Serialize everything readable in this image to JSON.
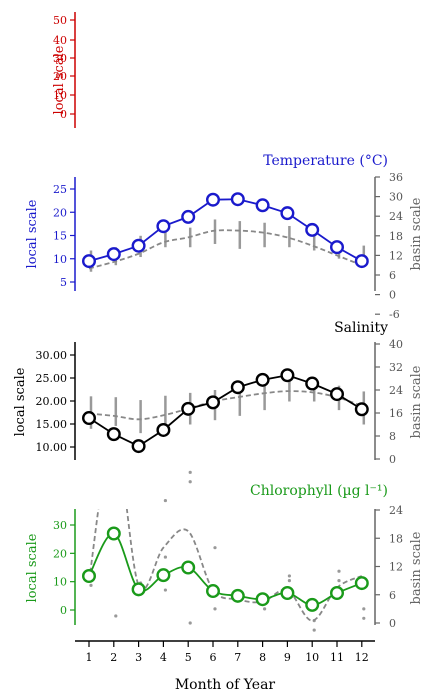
{
  "chart_data": {
    "type": "line",
    "x_label": "Month of Year",
    "x_ticks": [
      1,
      2,
      3,
      4,
      5,
      6,
      7,
      8,
      9,
      10,
      11,
      12
    ],
    "panels": [
      {
        "id": "top",
        "title": "",
        "color": "#cc0000",
        "left_label": "local scale",
        "left_ticks": [
          "50",
          "40",
          "30",
          "20",
          "10",
          "0"
        ],
        "left_ylim": [
          -5,
          55
        ],
        "right_label": "",
        "right_ticks": [],
        "series": []
      },
      {
        "id": "temperature",
        "title": "Temperature (°C)",
        "color": "#1a1acc",
        "left_label": "local scale",
        "left_ticks": [
          "25",
          "20",
          "15",
          "10",
          "5"
        ],
        "left_ylim": [
          3,
          27
        ],
        "right_label": "basin scale",
        "right_ticks": [
          "36",
          "30",
          "24",
          "18",
          "12",
          "6",
          "0",
          "-6"
        ],
        "right_ylim": [
          -6,
          36
        ],
        "local_mean": [
          9.5,
          11.0,
          12.8,
          17.0,
          19.0,
          22.7,
          22.8,
          21.5,
          19.8,
          16.2,
          12.5,
          9.5
        ],
        "basin_mean": [
          8.0,
          10.0,
          12.5,
          16.0,
          17.5,
          19.5,
          19.6,
          19.0,
          17.5,
          15.0,
          12.0,
          9.0
        ],
        "basin_range": [
          [
            7.0,
            13.5
          ],
          [
            9.0,
            14.5
          ],
          [
            11.5,
            18.0
          ],
          [
            14.5,
            20.5
          ],
          [
            14.5,
            20.5
          ],
          [
            15.5,
            23.0
          ],
          [
            14.0,
            22.5
          ],
          [
            14.5,
            22.0
          ],
          [
            14.5,
            21.0
          ],
          [
            13.5,
            18.5
          ],
          [
            11.0,
            15.5
          ],
          [
            8.5,
            15.0
          ]
        ]
      },
      {
        "id": "salinity",
        "title": "Salinity",
        "color": "#000000",
        "left_label": "local scale",
        "left_ticks": [
          "30.00",
          "25.00",
          "20.00",
          "15.00",
          "10.00"
        ],
        "left_ylim": [
          7,
          32
        ],
        "right_label": "basin scale",
        "right_ticks": [
          "40",
          "32",
          "24",
          "16",
          "8",
          "0"
        ],
        "right_ylim": [
          0,
          40
        ],
        "local_mean": [
          16.3,
          12.8,
          10.2,
          13.7,
          18.3,
          19.7,
          23.0,
          24.6,
          25.6,
          23.8,
          21.5,
          18.2
        ],
        "basin_mean": [
          15.8,
          15.0,
          13.8,
          15.2,
          17.5,
          20.0,
          21.5,
          22.8,
          23.6,
          23.2,
          21.5,
          18.5
        ],
        "basin_range": [
          [
            10.5,
            21.8
          ],
          [
            11.5,
            21.5
          ],
          [
            9.0,
            20.5
          ],
          [
            9.0,
            22.0
          ],
          [
            12.0,
            23.0
          ],
          [
            13.5,
            24.0
          ],
          [
            15.0,
            26.0
          ],
          [
            17.0,
            27.0
          ],
          [
            20.0,
            28.5
          ],
          [
            20.0,
            28.0
          ],
          [
            17.0,
            25.5
          ],
          [
            12.0,
            23.5
          ]
        ]
      },
      {
        "id": "chlorophyll",
        "title": "Chlorophyll (µg l⁻¹)",
        "color": "#1a9a1a",
        "left_label": "local scale",
        "left_ticks": [
          "30",
          "20",
          "10",
          "0"
        ],
        "left_ylim": [
          -5,
          36
        ],
        "right_label": "basin scale",
        "right_ticks": [
          "24",
          "18",
          "12",
          "6",
          "0"
        ],
        "right_ylim": [
          -1,
          24
        ],
        "local_mean": [
          12.0,
          27.0,
          7.3,
          12.3,
          15.0,
          6.7,
          5.0,
          3.8,
          6.0,
          1.8,
          6.0,
          9.5
        ],
        "basin_mean": [
          9.0,
          40.0,
          8.0,
          16.0,
          19.5,
          7.0,
          5.0,
          4.5,
          7.0,
          0.5,
          7.5,
          10.0
        ],
        "basin_points": [
          [
            1,
            9.0
          ],
          [
            1,
            8.0
          ],
          [
            2,
            1.5
          ],
          [
            3,
            8.5
          ],
          [
            3,
            7.0
          ],
          [
            4,
            26.0
          ],
          [
            4,
            14.0
          ],
          [
            4,
            7.0
          ],
          [
            5,
            32.0
          ],
          [
            5,
            30.0
          ],
          [
            5,
            0.0
          ],
          [
            6,
            16.0
          ],
          [
            6,
            3.0
          ],
          [
            7,
            5.0
          ],
          [
            8,
            3.0
          ],
          [
            8,
            5.0
          ],
          [
            9,
            9.0
          ],
          [
            9,
            10.0
          ],
          [
            10,
            -1.5
          ],
          [
            10,
            0.5
          ],
          [
            11,
            11.0
          ],
          [
            11,
            9.0
          ],
          [
            12,
            1.0
          ],
          [
            12,
            3.0
          ]
        ]
      }
    ]
  }
}
